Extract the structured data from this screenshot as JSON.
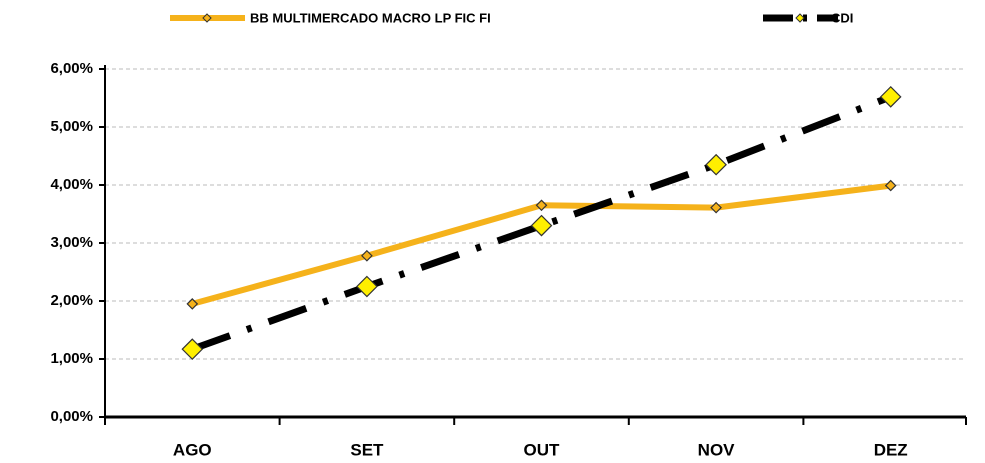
{
  "chart_data": {
    "type": "line",
    "categories": [
      "AGO",
      "SET",
      "OUT",
      "NOV",
      "DEZ"
    ],
    "series": [
      {
        "name": "BB MULTIMERCADO MACRO LP FIC FI",
        "color": "#f5b21b",
        "values": [
          1.95,
          2.78,
          3.65,
          3.61,
          3.99
        ]
      },
      {
        "name": "CDI",
        "color": "#000000",
        "values": [
          1.17,
          2.25,
          3.3,
          4.35,
          5.52
        ]
      }
    ],
    "ylim": [
      0,
      6
    ],
    "yticks": [
      {
        "value": 0,
        "label": "0,00%"
      },
      {
        "value": 1,
        "label": "1,00%"
      },
      {
        "value": 2,
        "label": "2,00%"
      },
      {
        "value": 3,
        "label": "3,00%"
      },
      {
        "value": 4,
        "label": "4,00%"
      },
      {
        "value": 5,
        "label": "5,00%"
      },
      {
        "value": 6,
        "label": "6,00%"
      }
    ],
    "grid": true,
    "legend": "top"
  }
}
